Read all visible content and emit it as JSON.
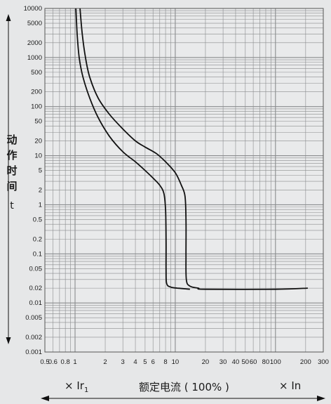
{
  "ylabel": {
    "chars": [
      "动",
      "作",
      "时",
      "间"
    ],
    "symbol": "t"
  },
  "bottom": {
    "left_label": "× Ir",
    "left_sub": "1",
    "center_label": "额定电流 ( 100% )",
    "right_label": "× In"
  },
  "chart_data": {
    "type": "line",
    "xscale": "log",
    "yscale": "log",
    "xlim": [
      0.5,
      300
    ],
    "ylim": [
      0.001,
      10000
    ],
    "grid": true,
    "x_ticks": [
      "0.5",
      "0.6",
      "0.8",
      "1",
      "2",
      "3",
      "4",
      "5",
      "6",
      "8",
      "10",
      "20",
      "30",
      "40",
      "50",
      "60",
      "80",
      "100",
      "200",
      "300"
    ],
    "x_tick_values": [
      0.5,
      0.6,
      0.8,
      1,
      2,
      3,
      4,
      5,
      6,
      8,
      10,
      20,
      30,
      40,
      50,
      60,
      80,
      100,
      200,
      300
    ],
    "y_ticks": [
      "10000",
      "5000",
      "2000",
      "1000",
      "500",
      "200",
      "100",
      "50",
      "20",
      "10",
      "5",
      "2",
      "1",
      "0.5",
      "0.2",
      "0.1",
      "0.05",
      "0.02",
      "0.01",
      "0.005",
      "0.002",
      "0.001"
    ],
    "y_tick_values": [
      10000,
      5000,
      2000,
      1000,
      500,
      200,
      100,
      50,
      20,
      10,
      5,
      2,
      1,
      0.5,
      0.2,
      0.1,
      0.05,
      0.02,
      0.01,
      0.005,
      0.002,
      0.001
    ],
    "series": [
      {
        "points": [
          [
            1.02,
            10000
          ],
          [
            1.05,
            3000
          ],
          [
            1.1,
            1000
          ],
          [
            1.2,
            400
          ],
          [
            1.4,
            150
          ],
          [
            1.7,
            60
          ],
          [
            2.2,
            25
          ],
          [
            3,
            12
          ],
          [
            4,
            7.5
          ],
          [
            5,
            5
          ],
          [
            6,
            3.5
          ],
          [
            7,
            2.5
          ],
          [
            7.7,
            1.7
          ],
          [
            8,
            0.8
          ],
          [
            8.1,
            0.2
          ],
          [
            8.1,
            0.05
          ],
          [
            8.2,
            0.025
          ],
          [
            9,
            0.021
          ],
          [
            10.5,
            0.02
          ],
          [
            14,
            0.019
          ]
        ]
      },
      {
        "points": [
          [
            1.12,
            10000
          ],
          [
            1.18,
            3000
          ],
          [
            1.27,
            1000
          ],
          [
            1.4,
            400
          ],
          [
            1.7,
            150
          ],
          [
            2.2,
            70
          ],
          [
            3,
            35
          ],
          [
            4,
            20
          ],
          [
            5,
            15
          ],
          [
            6.5,
            11
          ],
          [
            8,
            7.5
          ],
          [
            10,
            4.5
          ],
          [
            11.5,
            2.5
          ],
          [
            12.5,
            1.5
          ],
          [
            12.8,
            0.5
          ],
          [
            12.8,
            0.1
          ],
          [
            12.9,
            0.03
          ],
          [
            14,
            0.022
          ],
          [
            17,
            0.02
          ],
          [
            20,
            0.019
          ],
          [
            100,
            0.019
          ],
          [
            210,
            0.02
          ]
        ]
      }
    ]
  }
}
